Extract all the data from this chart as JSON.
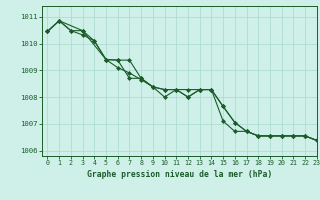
{
  "title": "Graphe pression niveau de la mer (hPa)",
  "background_color": "#cff0e8",
  "line_color": "#1a5c2a",
  "grid_color": "#a8d8cc",
  "xlim": [
    -0.5,
    23
  ],
  "ylim": [
    1005.8,
    1011.4
  ],
  "yticks": [
    1006,
    1007,
    1008,
    1009,
    1010,
    1011
  ],
  "xticks": [
    0,
    1,
    2,
    3,
    4,
    5,
    6,
    7,
    8,
    9,
    10,
    11,
    12,
    13,
    14,
    15,
    16,
    17,
    18,
    19,
    20,
    21,
    22,
    23
  ],
  "series1_x": [
    0,
    1,
    2,
    3,
    4,
    5,
    6,
    7,
    8,
    9,
    10,
    11,
    12,
    13,
    14,
    15,
    16,
    17,
    18,
    19,
    20,
    21,
    22,
    23
  ],
  "series1_y": [
    1010.45,
    1010.85,
    1010.48,
    1010.48,
    1010.1,
    1009.4,
    1009.38,
    1009.38,
    1008.7,
    1008.38,
    1008.28,
    1008.28,
    1008.0,
    1008.28,
    1008.28,
    1007.65,
    1007.05,
    1006.72,
    1006.55,
    1006.55,
    1006.55,
    1006.55,
    1006.55,
    1006.38
  ],
  "series2_x": [
    0,
    1,
    2,
    3,
    4,
    5,
    6,
    7,
    8,
    9,
    10,
    11,
    12,
    13,
    14,
    15,
    16,
    17,
    18,
    19,
    20,
    21,
    22,
    23
  ],
  "series2_y": [
    1010.45,
    1010.85,
    1010.48,
    1010.32,
    1010.1,
    1009.4,
    1009.38,
    1008.7,
    1008.7,
    1008.38,
    1008.0,
    1008.28,
    1008.0,
    1008.28,
    1008.28,
    1007.1,
    1006.72,
    1006.72,
    1006.55,
    1006.55,
    1006.55,
    1006.55,
    1006.55,
    1006.38
  ],
  "series3_x": [
    0,
    1,
    3,
    5,
    6,
    7,
    8,
    9,
    10,
    11,
    12,
    13,
    14,
    15,
    16,
    17,
    18,
    19,
    20,
    21,
    22,
    23
  ],
  "series3_y": [
    1010.45,
    1010.85,
    1010.48,
    1009.4,
    1009.1,
    1008.9,
    1008.65,
    1008.38,
    1008.28,
    1008.28,
    1008.28,
    1008.28,
    1008.28,
    1007.65,
    1007.05,
    1006.72,
    1006.55,
    1006.55,
    1006.55,
    1006.55,
    1006.55,
    1006.38
  ]
}
